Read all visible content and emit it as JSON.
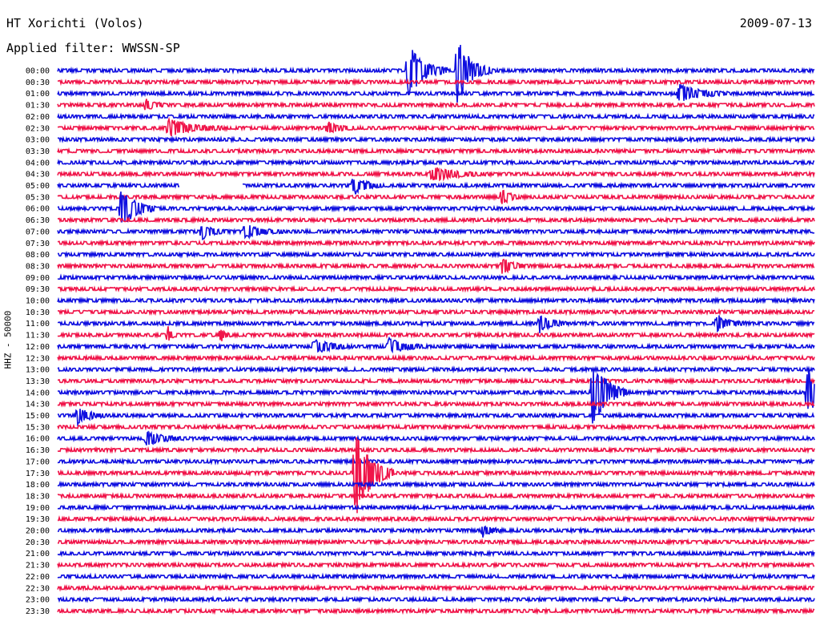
{
  "header": {
    "station": "HT Xorichti (Volos)",
    "date": "2009-07-13",
    "filter": "Applied filter: WWSSN-SP"
  },
  "chart_data": {
    "type": "line",
    "title": "HT Xorichti (Volos)",
    "date": "2009-07-13",
    "filter": "WWSSN-SP",
    "ylabel": "HHZ - 50000",
    "row_labels": [
      "00:00",
      "00:30",
      "01:00",
      "01:30",
      "02:00",
      "02:30",
      "03:00",
      "03:30",
      "04:00",
      "04:30",
      "05:00",
      "05:30",
      "06:00",
      "06:30",
      "07:00",
      "07:30",
      "08:00",
      "08:30",
      "09:00",
      "09:30",
      "10:00",
      "10:30",
      "11:00",
      "11:30",
      "12:00",
      "12:30",
      "13:00",
      "13:30",
      "14:00",
      "14:30",
      "15:00",
      "15:30",
      "16:00",
      "16:30",
      "17:00",
      "17:30",
      "18:00",
      "18:30",
      "19:00",
      "19:30",
      "20:00",
      "20:30",
      "21:00",
      "21:30",
      "22:00",
      "22:30",
      "23:00",
      "23:30"
    ],
    "trace_minutes": 30,
    "colors": [
      "#1010e0",
      "#f0154a"
    ],
    "events": [
      {
        "row": 0,
        "minute": 17.8,
        "amp": 5,
        "dur": 2
      },
      {
        "row": 0,
        "minute": 20.3,
        "amp": 6,
        "dur": 1.8
      },
      {
        "row": 2,
        "minute": 31.6,
        "amp": 1.6,
        "dur": 2.5
      },
      {
        "row": 3,
        "minute": 4.5,
        "amp": 1.3,
        "dur": 1
      },
      {
        "row": 5,
        "minute": 5.6,
        "amp": 1.6,
        "dur": 3
      },
      {
        "row": 5,
        "minute": 13.7,
        "amp": 1.2,
        "dur": 1.5
      },
      {
        "row": 9,
        "minute": 19,
        "amp": 1.3,
        "dur": 3
      },
      {
        "row": 10,
        "minute": 15,
        "amp": 2,
        "dur": 1.5
      },
      {
        "row": 11,
        "minute": 22.6,
        "amp": 1.5,
        "dur": 1
      },
      {
        "row": 12,
        "minute": 3.2,
        "amp": 4,
        "dur": 1.8
      },
      {
        "row": 14,
        "minute": 7.3,
        "amp": 1.5,
        "dur": 1.5
      },
      {
        "row": 14,
        "minute": 9.5,
        "amp": 1.3,
        "dur": 2
      },
      {
        "row": 17,
        "minute": 22.6,
        "amp": 1.4,
        "dur": 1.5
      },
      {
        "row": 22,
        "minute": 24.5,
        "amp": 1.6,
        "dur": 1.5
      },
      {
        "row": 22,
        "minute": 33.5,
        "amp": 1.6,
        "dur": 1.5
      },
      {
        "row": 23,
        "minute": 5.6,
        "amp": 1.5,
        "dur": 0.5
      },
      {
        "row": 23,
        "minute": 8.3,
        "amp": 1.5,
        "dur": 0.5
      },
      {
        "row": 24,
        "minute": 13,
        "amp": 1.5,
        "dur": 2
      },
      {
        "row": 24,
        "minute": 16.8,
        "amp": 1.5,
        "dur": 2
      },
      {
        "row": 28,
        "minute": 27.2,
        "amp": 7,
        "dur": 1.8
      },
      {
        "row": 28,
        "minute": 38.1,
        "amp": 5,
        "dur": 1.8
      },
      {
        "row": 30,
        "minute": 1,
        "amp": 1.5,
        "dur": 1.5
      },
      {
        "row": 32,
        "minute": 4.5,
        "amp": 1.2,
        "dur": 2
      },
      {
        "row": 35,
        "minute": 15.1,
        "amp": 9,
        "dur": 2
      },
      {
        "row": 40,
        "minute": 21.6,
        "amp": 1.2,
        "dur": 1
      }
    ],
    "gaps": [
      {
        "row": 10,
        "start_min": 6.2,
        "end_min": 9.4
      }
    ]
  }
}
